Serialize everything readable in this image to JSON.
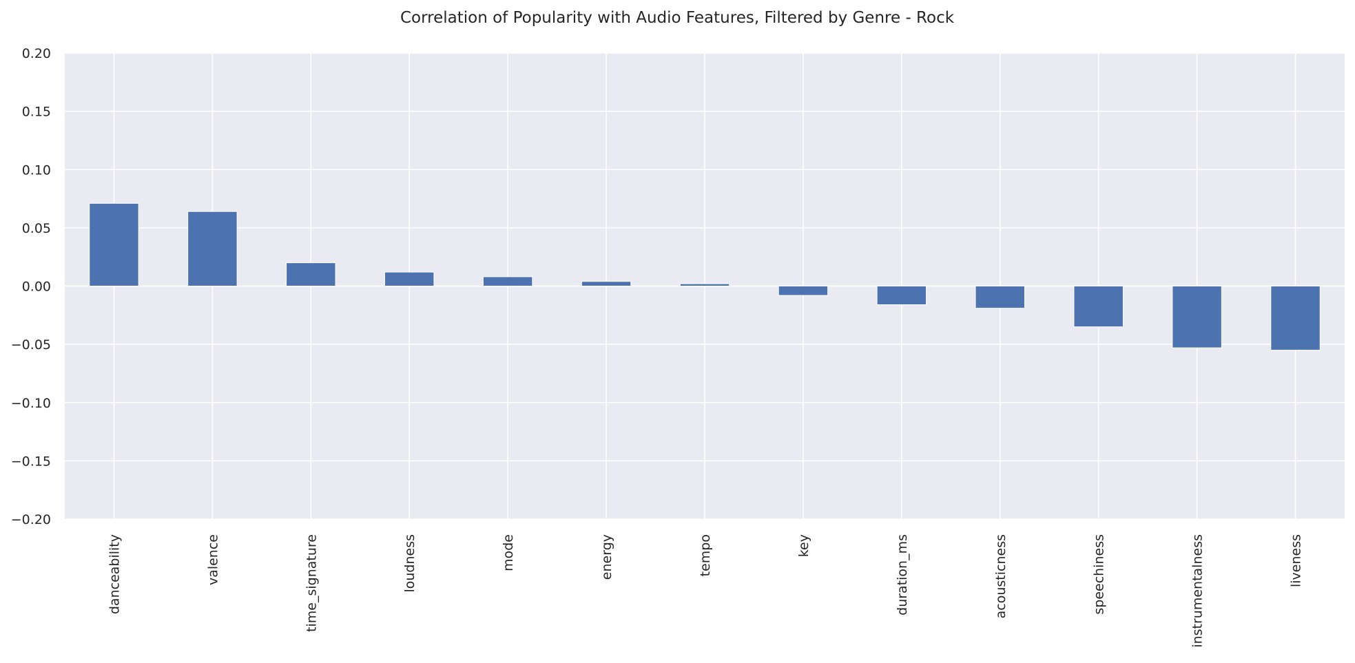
{
  "chart_data": {
    "type": "bar",
    "title": "Correlation of Popularity with Audio Features, Filtered by Genre - Rock",
    "xlabel": "",
    "ylabel": "",
    "categories": [
      "danceability",
      "valence",
      "time_signature",
      "loudness",
      "mode",
      "energy",
      "tempo",
      "key",
      "duration_ms",
      "acousticness",
      "speechiness",
      "instrumentalness",
      "liveness"
    ],
    "values": [
      0.071,
      0.064,
      0.02,
      0.012,
      0.008,
      0.004,
      0.002,
      -0.008,
      -0.016,
      -0.019,
      -0.035,
      -0.053,
      -0.055
    ],
    "ylim": [
      -0.2,
      0.2
    ],
    "yticks": [
      "0.20",
      "0.15",
      "0.10",
      "0.05",
      "0.00",
      "−0.05",
      "−0.10",
      "−0.15",
      "−0.20"
    ],
    "grid": true,
    "bar_color": "#4c72b0",
    "background_color": "#eaeaf2",
    "grid_color": "#ffffff"
  }
}
